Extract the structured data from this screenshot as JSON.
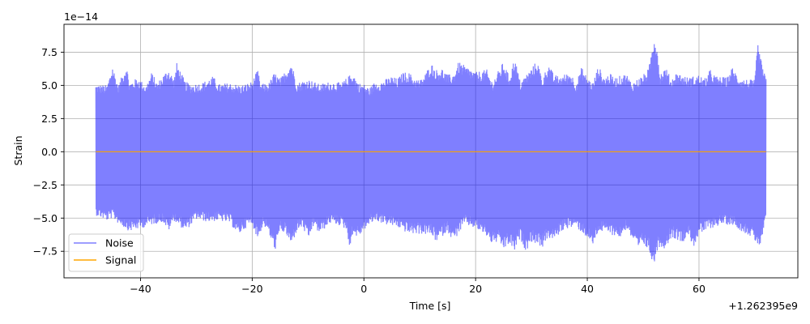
{
  "chart_data": {
    "type": "line",
    "title": "",
    "xlabel": "Time [s]",
    "ylabel": "Strain",
    "x_offset_label": "+1.262395e9",
    "y_scale_label": "1e−14",
    "xlim": [
      -53.7,
      77.7
    ],
    "ylim": [
      -9.5,
      9.6
    ],
    "grid": true,
    "legend_position": "lower-left",
    "x_ticks": [
      {
        "value": -40,
        "label": "−40"
      },
      {
        "value": -20,
        "label": "−20"
      },
      {
        "value": 0,
        "label": "0"
      },
      {
        "value": 20,
        "label": "20"
      },
      {
        "value": 40,
        "label": "40"
      },
      {
        "value": 60,
        "label": "60"
      }
    ],
    "y_ticks": [
      {
        "value": -7.5,
        "label": "−7.5"
      },
      {
        "value": -5.0,
        "label": "−5.0"
      },
      {
        "value": -2.5,
        "label": "−2.5"
      },
      {
        "value": 0.0,
        "label": "0.0"
      },
      {
        "value": 2.5,
        "label": "2.5"
      },
      {
        "value": 5.0,
        "label": "5.0"
      },
      {
        "value": 7.5,
        "label": "7.5"
      }
    ],
    "series": [
      {
        "name": "Noise",
        "color": "#7f7fff",
        "line_color": "#0000ff",
        "x_range": [
          -48,
          72
        ],
        "upper_envelope": [
          [
            -48,
            5.1
          ],
          [
            -46,
            5.0
          ],
          [
            -45,
            6.5
          ],
          [
            -44,
            5.0
          ],
          [
            -42.5,
            6.6
          ],
          [
            -42,
            5.2
          ],
          [
            -40.5,
            5.6
          ],
          [
            -39,
            5.0
          ],
          [
            -38,
            6.0
          ],
          [
            -37,
            5.2
          ],
          [
            -35,
            6.3
          ],
          [
            -34,
            5.5
          ],
          [
            -33.5,
            6.7
          ],
          [
            -32,
            5.3
          ],
          [
            -31,
            5.1
          ],
          [
            -29,
            5.2
          ],
          [
            -27,
            5.7
          ],
          [
            -26,
            5.1
          ],
          [
            -24,
            5.2
          ],
          [
            -22,
            5.0
          ],
          [
            -20,
            5.3
          ],
          [
            -19,
            6.2
          ],
          [
            -18.5,
            5.1
          ],
          [
            -17,
            5.2
          ],
          [
            -16,
            6.0
          ],
          [
            -15,
            5.5
          ],
          [
            -13,
            6.8
          ],
          [
            -12,
            5.2
          ],
          [
            -10,
            5.5
          ],
          [
            -8,
            5.1
          ],
          [
            -6,
            5.3
          ],
          [
            -4,
            5.2
          ],
          [
            -2,
            6.0
          ],
          [
            -1,
            5.2
          ],
          [
            0,
            5.1
          ],
          [
            1,
            4.8
          ],
          [
            2,
            5.3
          ],
          [
            3,
            5.3
          ],
          [
            5,
            5.7
          ],
          [
            6,
            5.5
          ],
          [
            7,
            6.0
          ],
          [
            8,
            6.0
          ],
          [
            9,
            5.6
          ],
          [
            10,
            5.4
          ],
          [
            11,
            5.9
          ],
          [
            12,
            6.7
          ],
          [
            13,
            6.2
          ],
          [
            14,
            6.3
          ],
          [
            15,
            5.8
          ],
          [
            16,
            5.9
          ],
          [
            17,
            6.8
          ],
          [
            18,
            6.5
          ],
          [
            19,
            6.3
          ],
          [
            20,
            6.0
          ],
          [
            22,
            6.2
          ],
          [
            23,
            5.3
          ],
          [
            25,
            6.8
          ],
          [
            26,
            5.7
          ],
          [
            27,
            7.1
          ],
          [
            28,
            5.3
          ],
          [
            30,
            6.3
          ],
          [
            31,
            6.9
          ],
          [
            32,
            5.5
          ],
          [
            33,
            6.7
          ],
          [
            34,
            5.8
          ],
          [
            35,
            5.7
          ],
          [
            37,
            6.0
          ],
          [
            38,
            5.2
          ],
          [
            39,
            6.4
          ],
          [
            40,
            5.6
          ],
          [
            41,
            5.2
          ],
          [
            42,
            6.5
          ],
          [
            43,
            5.6
          ],
          [
            44,
            5.9
          ],
          [
            45,
            5.6
          ],
          [
            47,
            5.9
          ],
          [
            48,
            5.2
          ],
          [
            50,
            5.8
          ],
          [
            51,
            6.3
          ],
          [
            52,
            8.9
          ],
          [
            52.5,
            8.0
          ],
          [
            53,
            5.9
          ],
          [
            54,
            6.4
          ],
          [
            55,
            5.5
          ],
          [
            56,
            6.0
          ],
          [
            58,
            5.6
          ],
          [
            60,
            5.8
          ],
          [
            61,
            5.5
          ],
          [
            62,
            6.2
          ],
          [
            63,
            5.7
          ],
          [
            65,
            5.6
          ],
          [
            66,
            6.4
          ],
          [
            67,
            5.7
          ],
          [
            68,
            5.5
          ],
          [
            70,
            5.4
          ],
          [
            70.5,
            8.3
          ],
          [
            71,
            7.1
          ],
          [
            72,
            5.5
          ]
        ],
        "lower_envelope": [
          [
            -48,
            -4.8
          ],
          [
            -46,
            -5.2
          ],
          [
            -45,
            -5.0
          ],
          [
            -44,
            -5.4
          ],
          [
            -42,
            -6.0
          ],
          [
            -40,
            -5.8
          ],
          [
            -38,
            -5.5
          ],
          [
            -36,
            -5.3
          ],
          [
            -35,
            -6.0
          ],
          [
            -34,
            -5.2
          ],
          [
            -32,
            -6.0
          ],
          [
            -30,
            -5.1
          ],
          [
            -28,
            -5.3
          ],
          [
            -26,
            -5.2
          ],
          [
            -24,
            -5.4
          ],
          [
            -22.5,
            -6.3
          ],
          [
            -21,
            -5.7
          ],
          [
            -20,
            -5.5
          ],
          [
            -19,
            -6.6
          ],
          [
            -18,
            -5.5
          ],
          [
            -17,
            -6.2
          ],
          [
            -16,
            -7.5
          ],
          [
            -15.5,
            -7.0
          ],
          [
            -15,
            -6.0
          ],
          [
            -14,
            -6.2
          ],
          [
            -13,
            -7.1
          ],
          [
            -12,
            -6.0
          ],
          [
            -11,
            -5.7
          ],
          [
            -10,
            -6.7
          ],
          [
            -9,
            -5.6
          ],
          [
            -8,
            -6.2
          ],
          [
            -6,
            -5.4
          ],
          [
            -4,
            -5.6
          ],
          [
            -3,
            -6.0
          ],
          [
            -2.5,
            -7.5
          ],
          [
            -2,
            -6.2
          ],
          [
            -1,
            -6.5
          ],
          [
            0,
            -5.9
          ],
          [
            2,
            -5.2
          ],
          [
            4,
            -5.5
          ],
          [
            6,
            -5.7
          ],
          [
            8,
            -6.2
          ],
          [
            10,
            -6.2
          ],
          [
            12,
            -6.3
          ],
          [
            13,
            -6.8
          ],
          [
            15,
            -6.0
          ],
          [
            16,
            -6.8
          ],
          [
            18,
            -5.5
          ],
          [
            20,
            -5.8
          ],
          [
            22,
            -6.4
          ],
          [
            23,
            -7.0
          ],
          [
            24,
            -6.8
          ],
          [
            25,
            -7.4
          ],
          [
            26,
            -7.0
          ],
          [
            27,
            -7.5
          ],
          [
            28,
            -6.6
          ],
          [
            29,
            -7.5
          ],
          [
            30,
            -6.8
          ],
          [
            32,
            -7.2
          ],
          [
            33,
            -6.5
          ],
          [
            34,
            -6.7
          ],
          [
            35,
            -6.2
          ],
          [
            36,
            -5.8
          ],
          [
            38,
            -5.7
          ],
          [
            40,
            -6.5
          ],
          [
            41,
            -7.1
          ],
          [
            42,
            -6.0
          ],
          [
            44,
            -6.2
          ],
          [
            46,
            -6.5
          ],
          [
            47,
            -5.8
          ],
          [
            48,
            -6.6
          ],
          [
            49,
            -7.5
          ],
          [
            50,
            -7.0
          ],
          [
            51,
            -7.5
          ],
          [
            52,
            -8.6
          ],
          [
            52.4,
            -7.5
          ],
          [
            53,
            -7.2
          ],
          [
            54,
            -7.3
          ],
          [
            55,
            -6.5
          ],
          [
            56,
            -6.6
          ],
          [
            57,
            -6.9
          ],
          [
            58,
            -6.2
          ],
          [
            59,
            -7.2
          ],
          [
            60,
            -6.3
          ],
          [
            62,
            -5.8
          ],
          [
            64,
            -5.5
          ],
          [
            66,
            -5.5
          ],
          [
            68,
            -6.1
          ],
          [
            69,
            -6.3
          ],
          [
            70,
            -6.8
          ],
          [
            71,
            -7.2
          ],
          [
            72,
            -5.2
          ]
        ]
      },
      {
        "name": "Signal",
        "color": "#ffa500",
        "x": [
          -48,
          72
        ],
        "y": [
          0,
          0
        ]
      }
    ]
  }
}
